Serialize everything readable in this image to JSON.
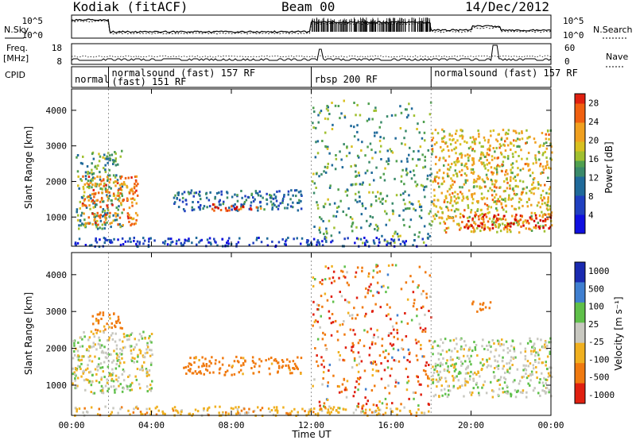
{
  "header": {
    "station": "Kodiak (fitACF)",
    "beam": "Beam 00",
    "date": "14/Dec/2012"
  },
  "panels": {
    "nsky_label": "N.Sky",
    "nsearch_label": "N.Search",
    "freq_label": "Freq.",
    "freq_unit": "[MHz]",
    "nave_label": "Nave",
    "cpid_label": "CPID",
    "noise_ticks": [
      "10^5",
      "10^0"
    ],
    "freq_ticks": [
      "18",
      "8"
    ],
    "nave_ticks": [
      "60",
      "0"
    ]
  },
  "cpid": [
    {
      "label": "normal",
      "start_h": 0.0
    },
    {
      "label": "normalsound (fast) 157 RF",
      "start_h": 1.85
    },
    {
      "label": "(fast) 151 RF",
      "start_h": 1.85
    },
    {
      "label": "rbsp 200 RF",
      "start_h": 12.0
    },
    {
      "label": "normalsound (fast) 157 RF",
      "start_h": 18.0
    }
  ],
  "chart_data": [
    {
      "type": "heatmap",
      "parameter": "Power",
      "xlabel": "",
      "ylabel": "Slant Range [km]",
      "xlim_hours": [
        0,
        24
      ],
      "ylim_km": [
        180,
        4600
      ],
      "y_ticks": [
        1000,
        2000,
        3000,
        4000
      ],
      "colorbar": {
        "label": "Power [dB]",
        "ticks": [
          4,
          8,
          12,
          16,
          20,
          24,
          28
        ],
        "range": [
          0,
          30
        ]
      },
      "echo_regions": [
        {
          "t": [
            0.2,
            2.5
          ],
          "r": [
            700,
            2900
          ],
          "level": 14
        },
        {
          "t": [
            0.5,
            3.3
          ],
          "r": [
            800,
            2200
          ],
          "level": 24
        },
        {
          "t": [
            5.0,
            11.5
          ],
          "r": [
            1200,
            1800
          ],
          "level": 10
        },
        {
          "t": [
            7.0,
            9.5
          ],
          "r": [
            1200,
            1400
          ],
          "level": 27
        },
        {
          "t": [
            12.0,
            18.0
          ],
          "r": [
            300,
            4300
          ],
          "level": 14
        },
        {
          "t": [
            18.0,
            24.0
          ],
          "r": [
            600,
            3500
          ],
          "level": 20
        },
        {
          "t": [
            19.5,
            24.0
          ],
          "r": [
            700,
            1100
          ],
          "level": 28
        },
        {
          "t": [
            0.0,
            18.0
          ],
          "r": [
            200,
            450
          ],
          "level": 6
        }
      ]
    },
    {
      "type": "heatmap",
      "parameter": "Velocity",
      "xlabel": "Time UT",
      "ylabel": "Slant Range [km]",
      "xlim_hours": [
        0,
        24
      ],
      "ylim_km": [
        180,
        4600
      ],
      "y_ticks": [
        1000,
        2000,
        3000,
        4000
      ],
      "colorbar": {
        "label": "Velocity [m s⁻¹]",
        "ticks": [
          1000,
          500,
          100,
          25,
          -25,
          -100,
          -500,
          -1000
        ]
      },
      "x_ticks": [
        "00:00",
        "04:00",
        "08:00",
        "12:00",
        "16:00",
        "20:00",
        "00:00"
      ],
      "echo_regions": [
        {
          "t": [
            0.0,
            4.0
          ],
          "r": [
            800,
            2500
          ],
          "velocity": 0
        },
        {
          "t": [
            1.0,
            2.5
          ],
          "r": [
            2500,
            3000
          ],
          "velocity": -150
        },
        {
          "t": [
            5.5,
            11.5
          ],
          "r": [
            1300,
            1800
          ],
          "velocity": -150
        },
        {
          "t": [
            12.0,
            18.0
          ],
          "r": [
            300,
            4300
          ],
          "velocity": -300
        },
        {
          "t": [
            18.0,
            24.0
          ],
          "r": [
            700,
            2300
          ],
          "velocity": 0
        },
        {
          "t": [
            20.0,
            21.0
          ],
          "r": [
            3000,
            3300
          ],
          "velocity": -150
        },
        {
          "t": [
            0.0,
            18.0
          ],
          "r": [
            200,
            450
          ],
          "velocity": -60
        }
      ]
    }
  ]
}
